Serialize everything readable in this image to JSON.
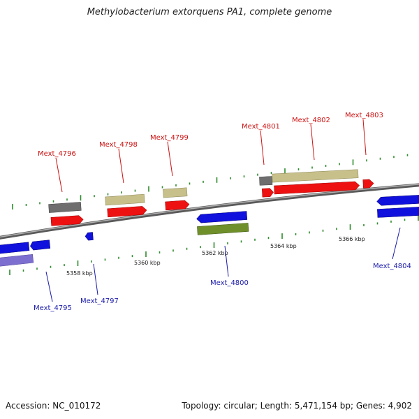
{
  "title": "Methylobacterium extorquens PA1, complete genome",
  "footer": {
    "accession": "Accession: NC_010172",
    "summary": "Topology: circular; Length: 5,471,154 bp; Genes: 4,902"
  },
  "colors": {
    "forward_label": "#cc1111",
    "reverse_label": "#1a1aaa",
    "backbone": "#8a8a8a",
    "cds_forward": "#ee1111",
    "cds_reverse": "#1111dd",
    "gene_tan": "#c8c08a",
    "gene_gray": "#6e6e6e",
    "gene_green": "#6f8f2a",
    "gene_lavender": "#7d6fcf",
    "tick_green": "#2e8b2e"
  },
  "scale_labels": [
    "5358 kbp",
    "5360 kbp",
    "5362 kbp",
    "5364 kbp",
    "5366 kbp"
  ],
  "forward_genes": [
    "Mext_4796",
    "Mext_4798",
    "Mext_4799",
    "Mext_4801",
    "Mext_4802",
    "Mext_4803"
  ],
  "reverse_genes": [
    "Mext_4795",
    "Mext_4797",
    "Mext_4800",
    "Mext_4804"
  ]
}
